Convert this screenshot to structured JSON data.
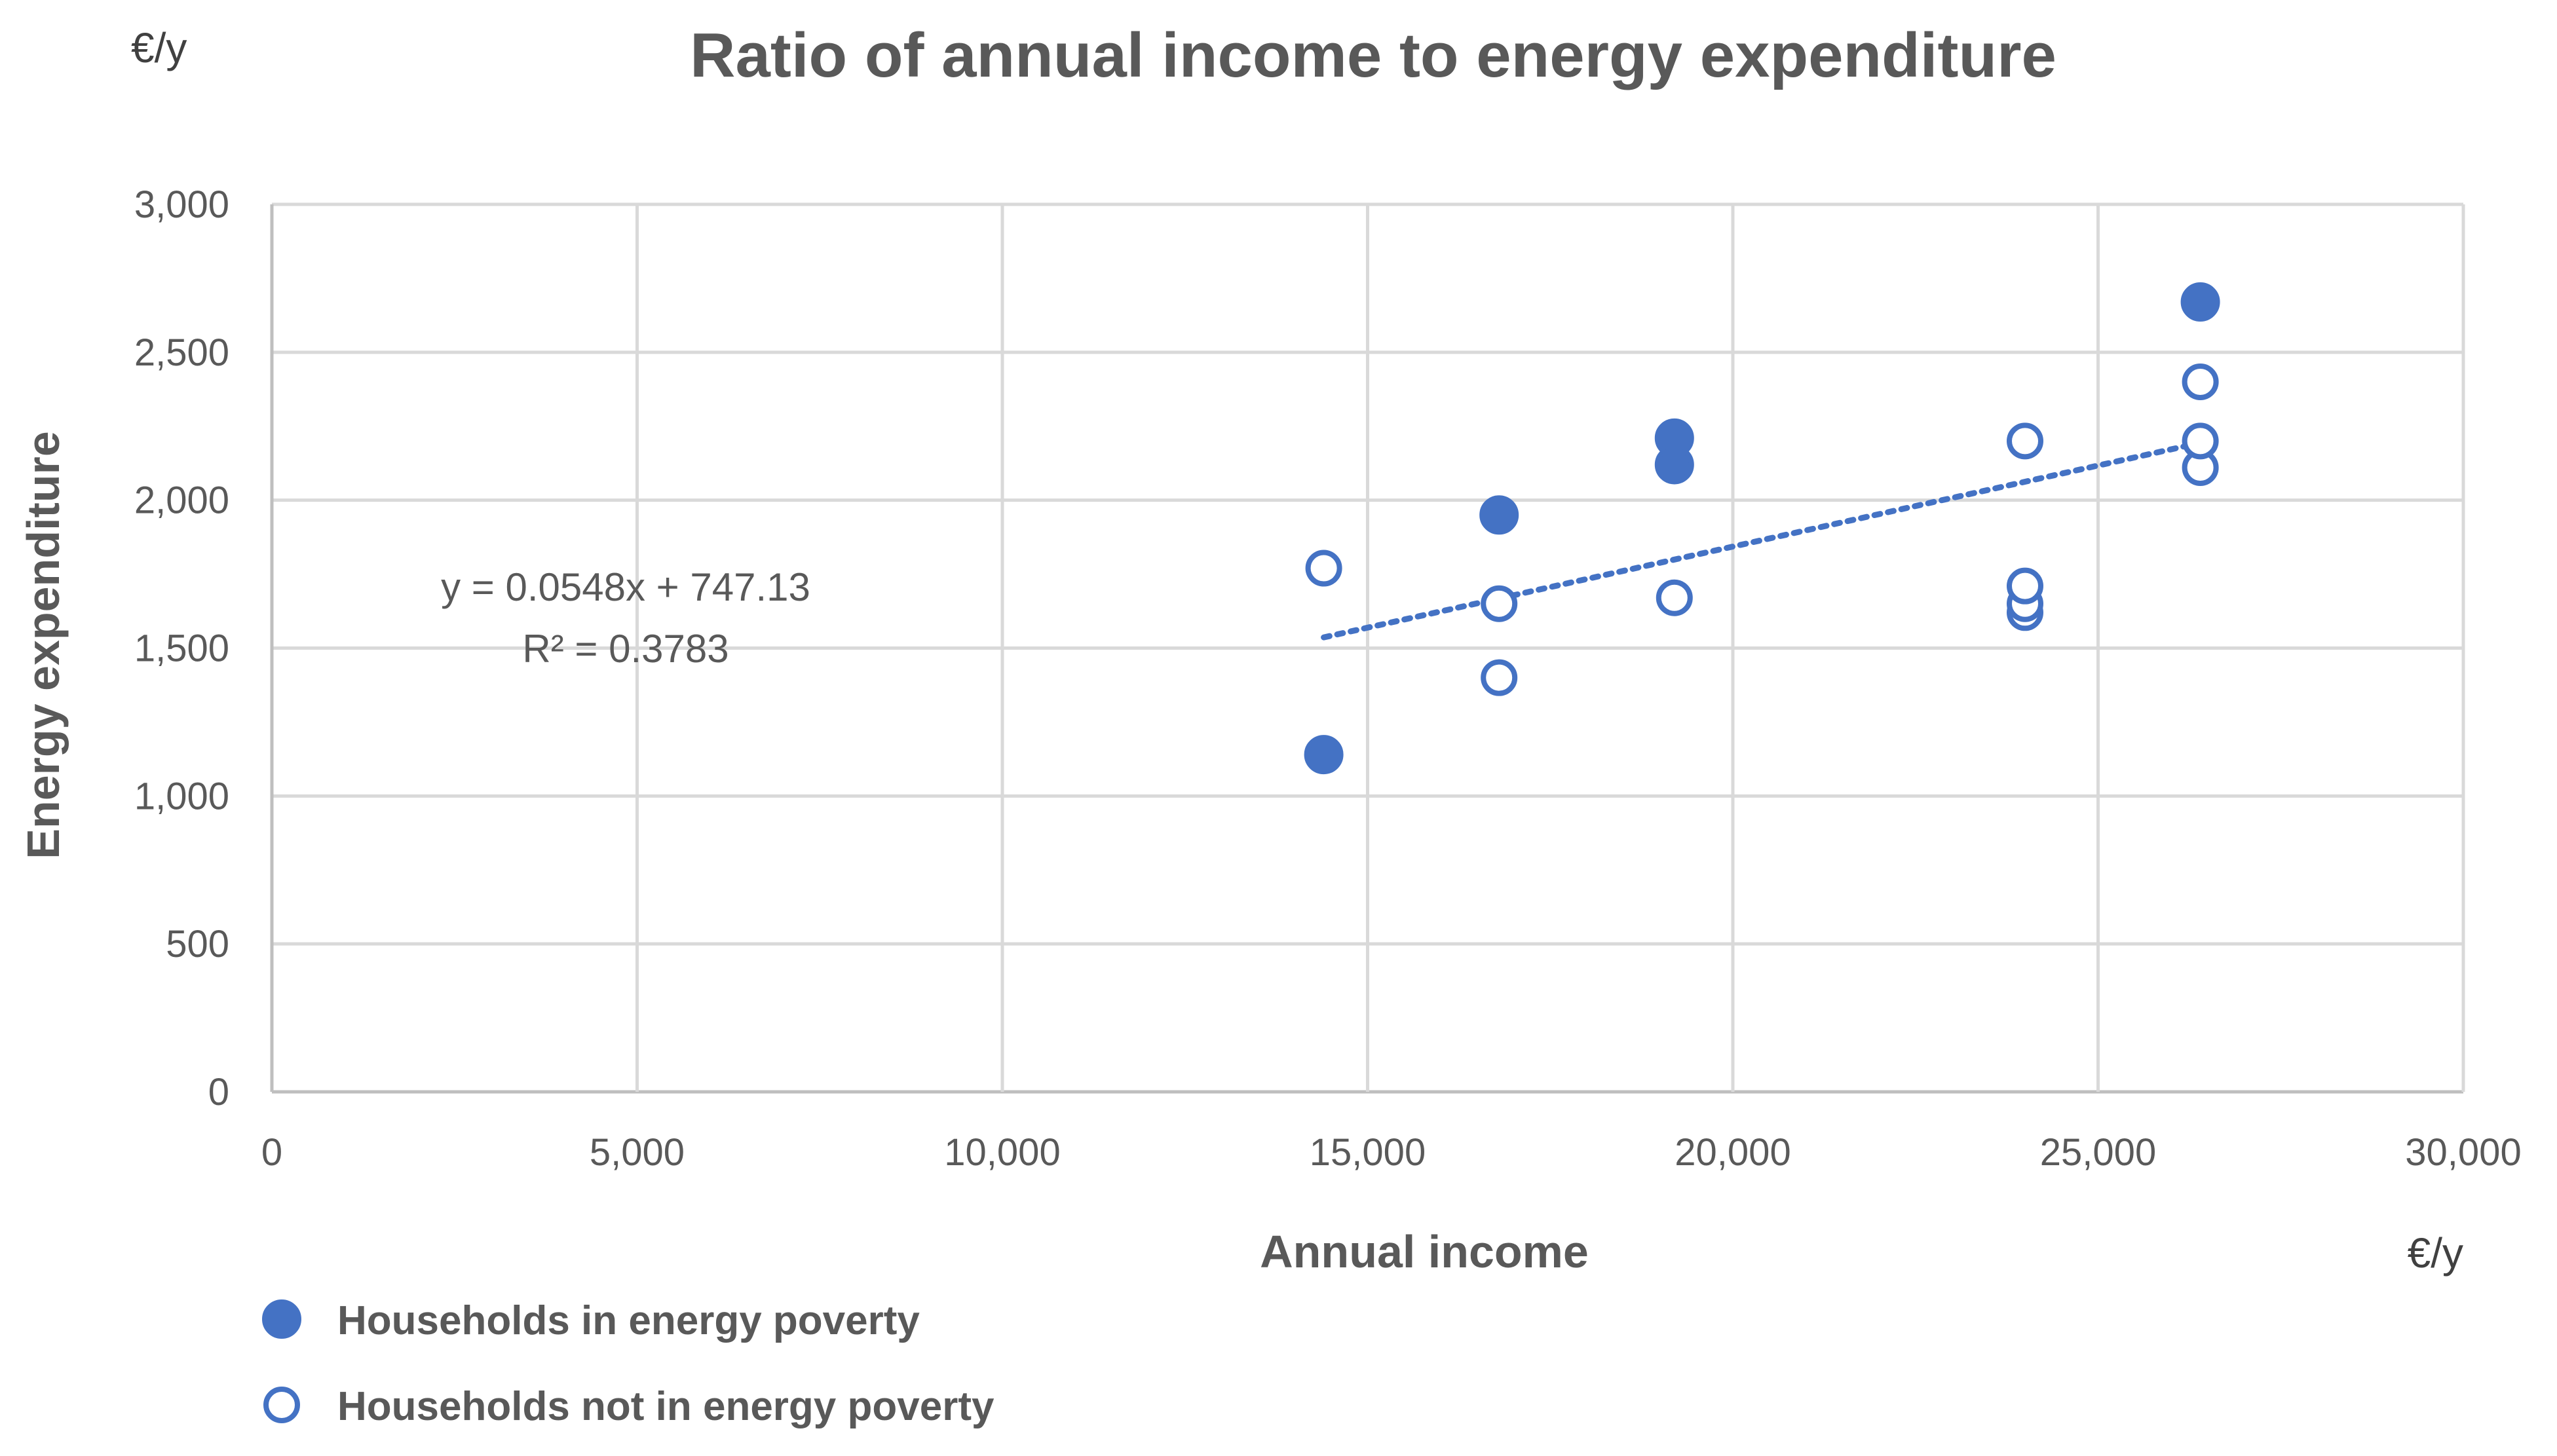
{
  "chart_data": {
    "type": "scatter",
    "title": "Ratio of annual income to energy expenditure",
    "xlabel": "Annual income",
    "ylabel": "Energy expenditure",
    "x_unit": "€/y",
    "y_unit": "€/y",
    "xlim": [
      0,
      30000
    ],
    "ylim": [
      0,
      3000
    ],
    "x_ticks": [
      0,
      5000,
      10000,
      15000,
      20000,
      25000,
      30000
    ],
    "y_ticks": [
      0,
      500,
      1000,
      1500,
      2000,
      2500,
      3000
    ],
    "x_tick_labels": [
      "0",
      "5,000",
      "10,000",
      "15,000",
      "20,000",
      "25,000",
      "30,000"
    ],
    "y_tick_labels": [
      "0",
      "500",
      "1,000",
      "1,500",
      "2,000",
      "2,500",
      "3,000"
    ],
    "grid": true,
    "color": "#4472c4",
    "series": [
      {
        "name": "Households in energy poverty",
        "marker": "filled-circle",
        "points": [
          {
            "x": 14400,
            "y": 1140
          },
          {
            "x": 16800,
            "y": 1950
          },
          {
            "x": 19200,
            "y": 2120
          },
          {
            "x": 19200,
            "y": 2210
          },
          {
            "x": 26400,
            "y": 2670
          }
        ]
      },
      {
        "name": "Households not in energy poverty",
        "marker": "hollow-circle",
        "points": [
          {
            "x": 14400,
            "y": 1770
          },
          {
            "x": 16800,
            "y": 1400
          },
          {
            "x": 16800,
            "y": 1650
          },
          {
            "x": 19200,
            "y": 1670
          },
          {
            "x": 24000,
            "y": 1620
          },
          {
            "x": 24000,
            "y": 1650
          },
          {
            "x": 24000,
            "y": 1710
          },
          {
            "x": 24000,
            "y": 2200
          },
          {
            "x": 26400,
            "y": 2110
          },
          {
            "x": 26400,
            "y": 2200
          },
          {
            "x": 26400,
            "y": 2400
          }
        ]
      }
    ],
    "trendline": {
      "type": "linear",
      "style": "dotted",
      "slope": 0.0548,
      "intercept": 747.13,
      "x_range": [
        14400,
        26400
      ],
      "equation": "y = 0.0548x + 747.13",
      "r_squared": "R² = 0.3783"
    },
    "legend": {
      "placement": "bottom-left",
      "entries": [
        "Households in energy poverty",
        "Households not in energy poverty"
      ]
    }
  }
}
